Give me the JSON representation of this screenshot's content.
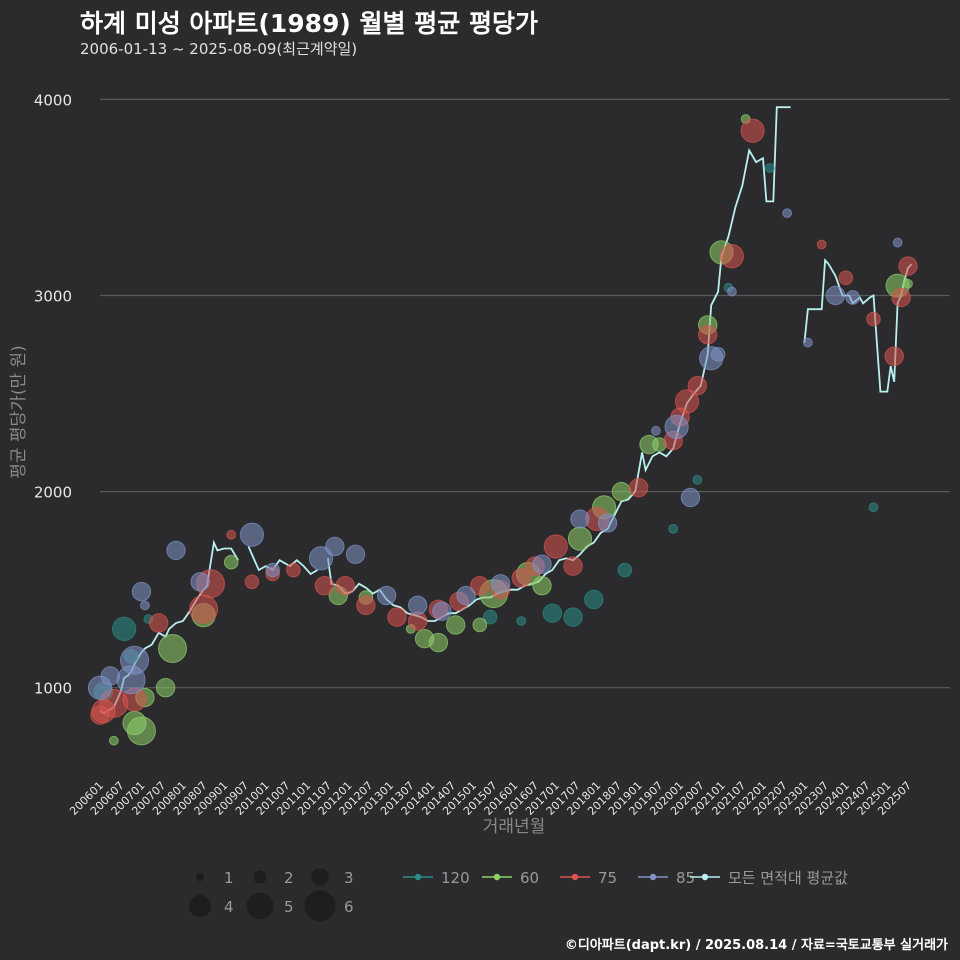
{
  "title": "하계 미성 아파트(1989) 월별 평균 평당가",
  "subtitle": "2006-01-13 ~ 2025-08-09(최근계약일)",
  "credit": "©디아파트(dapt.kr) / 2025.08.14 / 자료=국토교통부 실거래가",
  "colors": {
    "background": "#2b2b2d",
    "grid": "#5a5a5a",
    "s120": "#2a8c86",
    "s60": "#8fcf6a",
    "s75": "#d9534f",
    "s85": "#7f93c7",
    "avg": "#b8f0f0"
  },
  "chart_data": {
    "type": "scatter",
    "title": "하계 미성 아파트(1989) 월별 평균 평당가",
    "subtitle": "2006-01-13 ~ 2025-08-09(최근계약일)",
    "xlabel": "거래년월",
    "ylabel": "평균 평당가(만 원)",
    "x_start": "2006-01",
    "x_end": "2025-08",
    "ylim": [
      560,
      4160
    ],
    "yticks": [
      1000,
      2000,
      3000,
      4000
    ],
    "xticks": [
      "200601",
      "200607",
      "200701",
      "200707",
      "200801",
      "200807",
      "200901",
      "200907",
      "201001",
      "201007",
      "201101",
      "201107",
      "201201",
      "201207",
      "201301",
      "201307",
      "201401",
      "201407",
      "201501",
      "201507",
      "201601",
      "201607",
      "201701",
      "201707",
      "201801",
      "201807",
      "201901",
      "201907",
      "202001",
      "202007",
      "202101",
      "202107",
      "202201",
      "202207",
      "202301",
      "202307",
      "202401",
      "202407",
      "202501",
      "202507"
    ],
    "grid": "horizontal",
    "size_legend": {
      "title": "",
      "values": [
        1,
        2,
        3,
        4,
        5,
        6
      ]
    },
    "legend": [
      "120",
      "60",
      "75",
      "85",
      "모든 면적대 평균값"
    ],
    "series": [
      {
        "name": "120",
        "color_key": "s120",
        "points": [
          [
            "2006-02",
            980,
            3
          ],
          [
            "2006-08",
            1300,
            4
          ],
          [
            "2006-10",
            1160,
            2
          ],
          [
            "2007-03",
            1350,
            1
          ],
          [
            "2015-06",
            1360,
            2
          ],
          [
            "2016-03",
            1340,
            1
          ],
          [
            "2016-12",
            1380,
            3
          ],
          [
            "2017-06",
            1360,
            3
          ],
          [
            "2017-12",
            1450,
            3
          ],
          [
            "2018-09",
            1600,
            2
          ],
          [
            "2019-11",
            1810,
            1
          ],
          [
            "2020-06",
            2060,
            1
          ],
          [
            "2021-03",
            3040,
            1
          ],
          [
            "2022-03",
            3650,
            1
          ],
          [
            "2024-09",
            1920,
            1
          ]
        ]
      },
      {
        "name": "60",
        "color_key": "s60",
        "points": [
          [
            "2006-05",
            730,
            1
          ],
          [
            "2006-11",
            820,
            4
          ],
          [
            "2007-01",
            780,
            5
          ],
          [
            "2007-02",
            950,
            3
          ],
          [
            "2007-08",
            1000,
            3
          ],
          [
            "2007-10",
            1200,
            5
          ],
          [
            "2008-07",
            1370,
            4
          ],
          [
            "2009-03",
            1640,
            2
          ],
          [
            "2011-10",
            1470,
            3
          ],
          [
            "2012-06",
            1460,
            2
          ],
          [
            "2013-07",
            1300,
            1
          ],
          [
            "2013-11",
            1250,
            3
          ],
          [
            "2014-03",
            1230,
            3
          ],
          [
            "2014-08",
            1320,
            3
          ],
          [
            "2015-03",
            1320,
            2
          ],
          [
            "2015-07",
            1480,
            5
          ],
          [
            "2016-05",
            1580,
            4
          ],
          [
            "2016-09",
            1520,
            3
          ],
          [
            "2017-08",
            1760,
            4
          ],
          [
            "2018-03",
            1920,
            4
          ],
          [
            "2018-08",
            2000,
            3
          ],
          [
            "2019-04",
            2240,
            3
          ],
          [
            "2019-07",
            2240,
            2
          ],
          [
            "2020-09",
            2850,
            3
          ],
          [
            "2021-01",
            3220,
            4
          ],
          [
            "2021-08",
            3900,
            1
          ],
          [
            "2025-04",
            3050,
            4
          ],
          [
            "2025-07",
            3060,
            1
          ]
        ]
      },
      {
        "name": "75",
        "color_key": "s75",
        "points": [
          [
            "2006-01",
            860,
            3
          ],
          [
            "2006-02",
            880,
            4
          ],
          [
            "2006-05",
            920,
            5
          ],
          [
            "2006-11",
            940,
            4
          ],
          [
            "2007-06",
            1330,
            3
          ],
          [
            "2008-07",
            1400,
            5
          ],
          [
            "2008-09",
            1530,
            5
          ],
          [
            "2009-03",
            1780,
            1
          ],
          [
            "2009-09",
            1540,
            2
          ],
          [
            "2010-03",
            1580,
            2
          ],
          [
            "2010-09",
            1600,
            2
          ],
          [
            "2011-06",
            1520,
            3
          ],
          [
            "2011-12",
            1520,
            3
          ],
          [
            "2012-06",
            1420,
            3
          ],
          [
            "2013-03",
            1360,
            3
          ],
          [
            "2013-09",
            1340,
            3
          ],
          [
            "2014-03",
            1400,
            3
          ],
          [
            "2014-09",
            1440,
            3
          ],
          [
            "2015-03",
            1520,
            3
          ],
          [
            "2015-09",
            1500,
            3
          ],
          [
            "2016-03",
            1560,
            3
          ],
          [
            "2016-07",
            1620,
            3
          ],
          [
            "2017-01",
            1720,
            4
          ],
          [
            "2017-06",
            1620,
            3
          ],
          [
            "2018-01",
            1860,
            4
          ],
          [
            "2019-01",
            2020,
            3
          ],
          [
            "2019-11",
            2260,
            3
          ],
          [
            "2020-01",
            2380,
            3
          ],
          [
            "2020-03",
            2460,
            4
          ],
          [
            "2020-06",
            2540,
            3
          ],
          [
            "2020-09",
            2800,
            3
          ],
          [
            "2021-04",
            3200,
            4
          ],
          [
            "2021-10",
            3840,
            4
          ],
          [
            "2023-06",
            3260,
            1
          ],
          [
            "2024-01",
            3090,
            2
          ],
          [
            "2024-09",
            2880,
            2
          ],
          [
            "2025-03",
            2690,
            3
          ],
          [
            "2025-05",
            2990,
            3
          ],
          [
            "2025-07",
            3150,
            3
          ]
        ]
      },
      {
        "name": "85",
        "color_key": "s85",
        "points": [
          [
            "2006-01",
            1000,
            4
          ],
          [
            "2006-04",
            1060,
            3
          ],
          [
            "2006-10",
            1040,
            5
          ],
          [
            "2006-11",
            1140,
            5
          ],
          [
            "2007-01",
            1490,
            3
          ],
          [
            "2007-02",
            1420,
            1
          ],
          [
            "2007-11",
            1700,
            3
          ],
          [
            "2008-06",
            1540,
            3
          ],
          [
            "2009-09",
            1780,
            4
          ],
          [
            "2010-03",
            1600,
            2
          ],
          [
            "2011-05",
            1660,
            4
          ],
          [
            "2011-09",
            1720,
            3
          ],
          [
            "2012-03",
            1680,
            3
          ],
          [
            "2012-12",
            1470,
            3
          ],
          [
            "2013-09",
            1420,
            3
          ],
          [
            "2014-04",
            1390,
            3
          ],
          [
            "2014-11",
            1470,
            3
          ],
          [
            "2015-09",
            1530,
            3
          ],
          [
            "2016-09",
            1630,
            3
          ],
          [
            "2017-08",
            1860,
            3
          ],
          [
            "2018-04",
            1840,
            3
          ],
          [
            "2019-06",
            2310,
            1
          ],
          [
            "2019-12",
            2330,
            4
          ],
          [
            "2020-04",
            1970,
            3
          ],
          [
            "2020-10",
            2680,
            4
          ],
          [
            "2020-12",
            2700,
            2
          ],
          [
            "2021-04",
            3020,
            1
          ],
          [
            "2022-08",
            3420,
            1
          ],
          [
            "2023-02",
            2760,
            1
          ],
          [
            "2023-10",
            3000,
            3
          ],
          [
            "2024-03",
            2990,
            2
          ],
          [
            "2025-04",
            3270,
            1
          ]
        ]
      }
    ],
    "average": {
      "name": "모든 면적대 평균값",
      "color_key": "avg",
      "segments": [
        [
          [
            "2006-01",
            880
          ],
          [
            "2006-02",
            870
          ],
          [
            "2006-04",
            890
          ],
          [
            "2006-05",
            900
          ],
          [
            "2006-06",
            940
          ],
          [
            "2006-07",
            980
          ],
          [
            "2006-08",
            1050
          ],
          [
            "2006-09",
            1060
          ],
          [
            "2006-10",
            1080
          ],
          [
            "2006-11",
            1120
          ],
          [
            "2007-01",
            1180
          ],
          [
            "2007-02",
            1200
          ],
          [
            "2007-04",
            1220
          ],
          [
            "2007-06",
            1280
          ],
          [
            "2007-08",
            1260
          ],
          [
            "2007-09",
            1300
          ],
          [
            "2007-11",
            1330
          ],
          [
            "2008-01",
            1340
          ],
          [
            "2008-03",
            1390
          ],
          [
            "2008-05",
            1450
          ],
          [
            "2008-07",
            1500
          ],
          [
            "2008-08",
            1520
          ],
          [
            "2008-10",
            1740
          ],
          [
            "2008-11",
            1700
          ],
          [
            "2009-01",
            1710
          ],
          [
            "2009-03",
            1710
          ],
          [
            "2009-05",
            1650
          ]
        ],
        [
          [
            "2009-08",
            1720
          ],
          [
            "2009-09",
            1680
          ],
          [
            "2009-11",
            1600
          ],
          [
            "2010-01",
            1620
          ],
          [
            "2010-03",
            1600
          ],
          [
            "2010-05",
            1650
          ],
          [
            "2010-08",
            1620
          ],
          [
            "2010-10",
            1650
          ],
          [
            "2010-12",
            1620
          ],
          [
            "2011-02",
            1580
          ],
          [
            "2011-04",
            1600
          ]
        ],
        [
          [
            "2011-07",
            1660
          ],
          [
            "2011-08",
            1530
          ],
          [
            "2011-10",
            1520
          ],
          [
            "2011-12",
            1480
          ],
          [
            "2012-02",
            1490
          ],
          [
            "2012-04",
            1530
          ],
          [
            "2012-06",
            1510
          ],
          [
            "2012-08",
            1480
          ],
          [
            "2012-10",
            1500
          ],
          [
            "2012-12",
            1450
          ],
          [
            "2013-02",
            1420
          ],
          [
            "2013-04",
            1410
          ],
          [
            "2013-06",
            1380
          ],
          [
            "2013-08",
            1370
          ],
          [
            "2013-10",
            1360
          ],
          [
            "2013-12",
            1340
          ],
          [
            "2014-02",
            1340
          ],
          [
            "2014-04",
            1360
          ],
          [
            "2014-06",
            1380
          ],
          [
            "2014-08",
            1380
          ],
          [
            "2014-10",
            1400
          ],
          [
            "2014-12",
            1420
          ],
          [
            "2015-02",
            1450
          ],
          [
            "2015-04",
            1460
          ],
          [
            "2015-06",
            1460
          ],
          [
            "2015-08",
            1480
          ],
          [
            "2015-10",
            1490
          ],
          [
            "2015-12",
            1500
          ],
          [
            "2016-02",
            1500
          ],
          [
            "2016-04",
            1520
          ],
          [
            "2016-06",
            1530
          ],
          [
            "2016-08",
            1540
          ],
          [
            "2016-10",
            1580
          ],
          [
            "2016-12",
            1600
          ],
          [
            "2017-02",
            1650
          ],
          [
            "2017-04",
            1660
          ],
          [
            "2017-06",
            1650
          ],
          [
            "2017-08",
            1680
          ],
          [
            "2017-10",
            1720
          ],
          [
            "2017-12",
            1740
          ],
          [
            "2018-02",
            1790
          ],
          [
            "2018-04",
            1810
          ],
          [
            "2018-06",
            1880
          ],
          [
            "2018-08",
            1950
          ],
          [
            "2018-10",
            1960
          ],
          [
            "2018-12",
            2000
          ],
          [
            "2019-02",
            2200
          ],
          [
            "2019-03",
            2110
          ],
          [
            "2019-05",
            2180
          ],
          [
            "2019-07",
            2200
          ],
          [
            "2019-09",
            2180
          ],
          [
            "2019-11",
            2220
          ],
          [
            "2020-01",
            2350
          ],
          [
            "2020-03",
            2450
          ],
          [
            "2020-05",
            2500
          ],
          [
            "2020-07",
            2540
          ],
          [
            "2020-09",
            2700
          ],
          [
            "2020-10",
            2950
          ],
          [
            "2020-12",
            3020
          ],
          [
            "2021-01",
            3200
          ],
          [
            "2021-03",
            3300
          ],
          [
            "2021-05",
            3450
          ],
          [
            "2021-07",
            3560
          ],
          [
            "2021-09",
            3740
          ],
          [
            "2021-11",
            3680
          ],
          [
            "2022-01",
            3700
          ],
          [
            "2022-02",
            3480
          ],
          [
            "2022-04",
            3480
          ],
          [
            "2022-05",
            3960
          ],
          [
            "2022-07",
            3960
          ],
          [
            "2022-09",
            3960
          ]
        ],
        [
          [
            "2023-01",
            2760
          ],
          [
            "2023-02",
            2930
          ],
          [
            "2023-04",
            2930
          ],
          [
            "2023-06",
            2930
          ],
          [
            "2023-07",
            3180
          ],
          [
            "2023-08",
            3160
          ],
          [
            "2023-10",
            3100
          ],
          [
            "2023-12",
            3000
          ],
          [
            "2024-02",
            3000
          ],
          [
            "2024-03",
            2960
          ],
          [
            "2024-05",
            2990
          ],
          [
            "2024-06",
            2960
          ],
          [
            "2024-08",
            2990
          ],
          [
            "2024-09",
            3000
          ],
          [
            "2024-11",
            2510
          ],
          [
            "2025-01",
            2510
          ],
          [
            "2025-02",
            2640
          ],
          [
            "2025-03",
            2560
          ],
          [
            "2025-04",
            2960
          ],
          [
            "2025-05",
            3000
          ],
          [
            "2025-06",
            3080
          ],
          [
            "2025-07",
            3140
          ],
          [
            "2025-08",
            3160
          ]
        ]
      ]
    }
  }
}
